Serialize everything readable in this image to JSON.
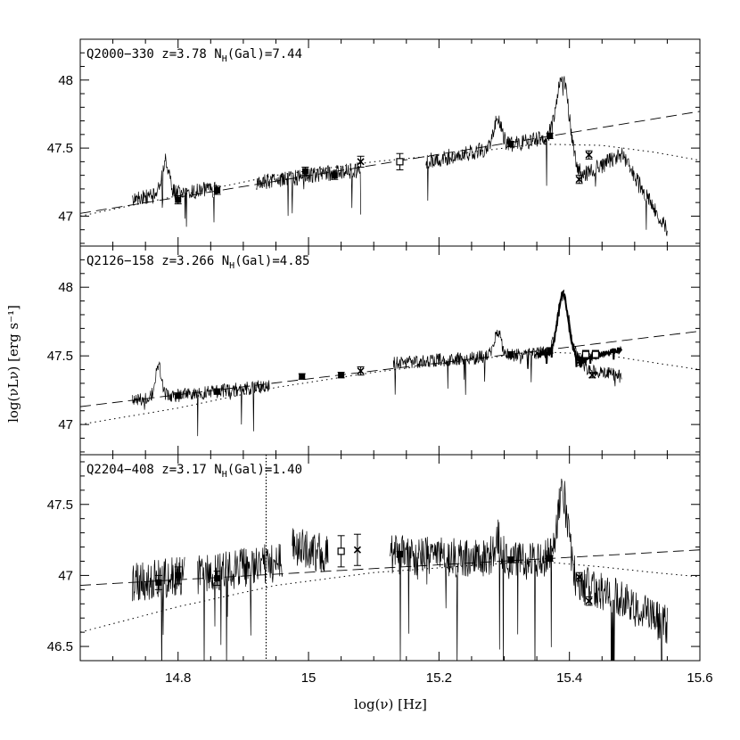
{
  "chart_data": {
    "type": "line",
    "xlabel": "log(ν) [Hz]",
    "ylabel": "log(νLν) [erg s⁻¹]",
    "xlim": [
      14.65,
      15.6
    ],
    "x_ticks": [
      "14.8",
      "15",
      "15.2",
      "15.4",
      "15.6"
    ],
    "panels": [
      {
        "label": "Q2000−330  z=3.78  N",
        "label_sub": "H",
        "label_tail": "(Gal)=7.44",
        "ylim": [
          46.78,
          48.3
        ],
        "y_ticks": [
          "47",
          "47.5",
          "48"
        ],
        "spectrum": {
          "segments": [
            [
              14.73,
              14.86
            ],
            [
              14.92,
              15.08
            ],
            [
              15.18,
              15.55
            ]
          ],
          "baseline": [
            [
              14.73,
              47.13
            ],
            [
              14.86,
              47.2
            ],
            [
              15.0,
              47.3
            ],
            [
              15.1,
              47.35
            ],
            [
              15.18,
              47.4
            ],
            [
              15.3,
              47.52
            ],
            [
              15.37,
              47.58
            ],
            [
              15.42,
              47.3
            ],
            [
              15.48,
              47.45
            ],
            [
              15.55,
              46.9
            ]
          ],
          "peaks": [
            [
              14.78,
              47.4,
              0.006
            ],
            [
              15.29,
              47.72,
              0.006
            ],
            [
              15.39,
              48.05,
              0.009
            ]
          ],
          "noise": 0.06
        },
        "photometry": [
          {
            "x": 14.8,
            "y": 47.12,
            "err": 0.03,
            "marker": "square-filled"
          },
          {
            "x": 14.86,
            "y": 47.19,
            "err": 0.03,
            "marker": "square-filled"
          },
          {
            "x": 14.995,
            "y": 47.33,
            "err": 0.03,
            "marker": "square-filled"
          },
          {
            "x": 15.04,
            "y": 47.3,
            "err": 0.03,
            "marker": "square-filled"
          },
          {
            "x": 15.08,
            "y": 47.4,
            "err": 0.04,
            "marker": "cross"
          },
          {
            "x": 15.14,
            "y": 47.4,
            "err": 0.06,
            "marker": "square-open"
          },
          {
            "x": 15.31,
            "y": 47.53,
            "err": 0.02,
            "marker": "square-filled"
          },
          {
            "x": 15.37,
            "y": 47.59,
            "err": 0.02,
            "marker": "square-filled"
          },
          {
            "x": 15.415,
            "y": 47.27,
            "err": 0.03,
            "marker": "cross"
          },
          {
            "x": 15.43,
            "y": 47.45,
            "err": 0.03,
            "marker": "cross"
          }
        ],
        "powerlaw": {
          "x": [
            14.65,
            15.6
          ],
          "y": [
            47.02,
            47.77
          ]
        },
        "model_curve": [
          [
            14.65,
            47.0
          ],
          [
            14.8,
            47.15
          ],
          [
            14.95,
            47.3
          ],
          [
            15.1,
            47.4
          ],
          [
            15.25,
            47.47
          ],
          [
            15.35,
            47.53
          ],
          [
            15.45,
            47.52
          ],
          [
            15.53,
            47.47
          ],
          [
            15.6,
            47.41
          ]
        ]
      },
      {
        "label": "Q2126−158  z=3.266  N",
        "label_sub": "H",
        "label_tail": "(Gal)=4.85",
        "ylim": [
          46.78,
          48.3
        ],
        "y_ticks": [
          "47",
          "47.5",
          "48"
        ],
        "spectrum": {
          "segments": [
            [
              14.73,
              14.94
            ],
            [
              15.13,
              15.48
            ]
          ],
          "baseline": [
            [
              14.73,
              47.18
            ],
            [
              14.94,
              47.28
            ],
            [
              15.13,
              47.45
            ],
            [
              15.3,
              47.5
            ],
            [
              15.4,
              47.55
            ],
            [
              15.43,
              47.4
            ],
            [
              15.48,
              47.35
            ]
          ],
          "peaks": [
            [
              14.77,
              47.42,
              0.005
            ],
            [
              15.03,
              47.47,
              0.006
            ],
            [
              15.29,
              47.66,
              0.006
            ],
            [
              15.39,
              47.95,
              0.008
            ]
          ],
          "noise": 0.05
        },
        "spectrum2": {
          "segments": [
            [
              15.35,
              15.48
            ]
          ],
          "baseline": [
            [
              15.35,
              47.52
            ],
            [
              15.42,
              47.48
            ],
            [
              15.48,
              47.55
            ]
          ],
          "peaks": [
            [
              15.39,
              47.95,
              0.008
            ]
          ],
          "noise": 0.02
        },
        "photometry": [
          {
            "x": 14.8,
            "y": 47.21,
            "err": 0.02,
            "marker": "square-filled"
          },
          {
            "x": 14.86,
            "y": 47.24,
            "err": 0.02,
            "marker": "square-filled"
          },
          {
            "x": 14.99,
            "y": 47.35,
            "err": 0.02,
            "marker": "square-filled"
          },
          {
            "x": 15.05,
            "y": 47.36,
            "err": 0.02,
            "marker": "square-filled"
          },
          {
            "x": 15.08,
            "y": 47.39,
            "err": 0.03,
            "marker": "cross"
          },
          {
            "x": 15.31,
            "y": 47.51,
            "err": 0.02,
            "marker": "square-filled"
          },
          {
            "x": 15.37,
            "y": 47.54,
            "err": 0.02,
            "marker": "square-filled"
          },
          {
            "x": 15.415,
            "y": 47.46,
            "err": 0.03,
            "marker": "cross"
          },
          {
            "x": 15.425,
            "y": 47.51,
            "err": 0.03,
            "marker": "square-open"
          },
          {
            "x": 15.44,
            "y": 47.51,
            "err": 0.03,
            "marker": "square-open"
          },
          {
            "x": 15.435,
            "y": 47.36,
            "err": 0.02,
            "marker": "cross"
          }
        ],
        "powerlaw": {
          "x": [
            14.65,
            15.6
          ],
          "y": [
            47.13,
            47.68
          ]
        },
        "model_curve": [
          [
            14.65,
            47.0
          ],
          [
            14.8,
            47.12
          ],
          [
            14.95,
            47.27
          ],
          [
            15.1,
            47.38
          ],
          [
            15.25,
            47.47
          ],
          [
            15.35,
            47.53
          ],
          [
            15.45,
            47.51
          ],
          [
            15.53,
            47.45
          ],
          [
            15.6,
            47.4
          ]
        ]
      },
      {
        "label": "Q2204−408  z=3.17  N",
        "label_sub": "H",
        "label_tail": "(Gal)=1.40",
        "ylim": [
          46.4,
          47.85
        ],
        "y_ticks": [
          "46.5",
          "47",
          "47.5"
        ],
        "spectrum": {
          "segments": [
            [
              14.73,
              14.81
            ],
            [
              14.83,
              14.96
            ],
            [
              14.975,
              15.03
            ],
            [
              15.125,
              15.55
            ]
          ],
          "baseline": [
            [
              14.73,
              46.95
            ],
            [
              14.81,
              47.0
            ],
            [
              14.83,
              47.0
            ],
            [
              14.96,
              47.1
            ],
            [
              14.975,
              47.2
            ],
            [
              15.03,
              47.15
            ],
            [
              15.125,
              47.15
            ],
            [
              15.31,
              47.1
            ],
            [
              15.37,
              47.12
            ],
            [
              15.41,
              46.95
            ],
            [
              15.47,
              46.85
            ],
            [
              15.55,
              46.65
            ]
          ],
          "peaks": [
            [
              15.29,
              47.27,
              0.006
            ],
            [
              15.39,
              47.6,
              0.008
            ]
          ],
          "noise": 0.14
        },
        "photometry": [
          {
            "x": 14.77,
            "y": 46.95,
            "err": 0.05,
            "marker": "square-filled"
          },
          {
            "x": 14.8,
            "y": 47.0,
            "err": 0.06,
            "marker": "square-filled"
          },
          {
            "x": 14.86,
            "y": 46.98,
            "err": 0.05,
            "marker": "square-filled"
          },
          {
            "x": 15.05,
            "y": 47.17,
            "err": 0.11,
            "marker": "square-open"
          },
          {
            "x": 15.075,
            "y": 47.18,
            "err": 0.11,
            "marker": "cross"
          },
          {
            "x": 15.14,
            "y": 47.15,
            "err": 0.02,
            "marker": "square-filled"
          },
          {
            "x": 15.31,
            "y": 47.11,
            "err": 0.02,
            "marker": "square-filled"
          },
          {
            "x": 15.37,
            "y": 47.12,
            "err": 0.02,
            "marker": "square-filled"
          },
          {
            "x": 15.415,
            "y": 46.99,
            "err": 0.03,
            "marker": "cross"
          },
          {
            "x": 15.43,
            "y": 46.82,
            "err": 0.03,
            "marker": "cross"
          }
        ],
        "powerlaw": {
          "x": [
            14.65,
            15.6
          ],
          "y": [
            46.93,
            47.18
          ]
        },
        "model_curve": [
          [
            14.65,
            46.6
          ],
          [
            14.8,
            46.78
          ],
          [
            14.95,
            46.93
          ],
          [
            15.1,
            47.02
          ],
          [
            15.25,
            47.07
          ],
          [
            15.35,
            47.1
          ],
          [
            15.45,
            47.06
          ],
          [
            15.53,
            47.02
          ],
          [
            15.6,
            46.99
          ]
        ],
        "vertical_marker": {
          "x": 14.935
        }
      }
    ]
  }
}
